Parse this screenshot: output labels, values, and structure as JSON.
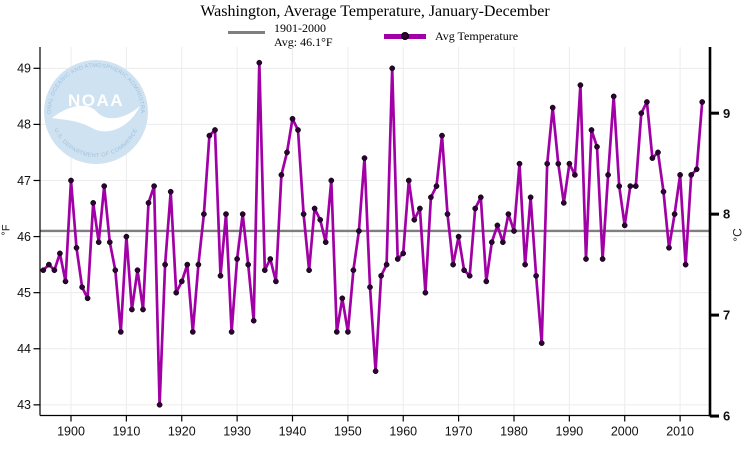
{
  "title": "Washington, Average Temperature, January-December",
  "legend": {
    "baseline": {
      "line1": "1901-2000",
      "line2": "Avg: 46.1°F"
    },
    "series": {
      "label": "Avg Temperature"
    }
  },
  "watermark": {
    "ring_top": "NATIONAL OCEANIC AND ATMOSPHERIC ADMINISTRATION",
    "ring_bottom": "U.S. DEPARTMENT OF COMMERCE",
    "wordmark": "NOAA"
  },
  "colors": {
    "series": "#a100a6",
    "marker": "#2e0033",
    "baseline": "#7f7f7f",
    "grid": "#ececec",
    "axis": "#000000",
    "logo_disc": "#cfe2f2",
    "logo_ring_text": "#9fc2de"
  },
  "chart_data": {
    "type": "line",
    "title": "Washington, Average Temperature, January-December",
    "start_year": 1895,
    "series": [
      {
        "name": "Avg Temperature",
        "values": [
          45.4,
          45.5,
          45.4,
          45.7,
          45.2,
          47.0,
          45.8,
          45.1,
          44.9,
          46.6,
          45.9,
          46.9,
          45.9,
          45.4,
          44.3,
          46.0,
          44.7,
          45.4,
          44.7,
          46.6,
          46.9,
          43.0,
          45.5,
          46.8,
          45.0,
          45.2,
          45.5,
          44.3,
          45.5,
          46.4,
          47.8,
          47.9,
          45.3,
          46.4,
          44.3,
          45.6,
          46.4,
          45.5,
          44.5,
          49.1,
          45.4,
          45.6,
          45.2,
          47.1,
          47.5,
          48.1,
          47.9,
          46.4,
          45.4,
          46.5,
          46.3,
          45.9,
          47.0,
          44.3,
          44.9,
          44.3,
          45.4,
          46.1,
          47.4,
          45.1,
          43.6,
          45.3,
          45.5,
          49.0,
          45.6,
          45.7,
          47.0,
          46.3,
          46.5,
          45.0,
          46.7,
          46.9,
          47.8,
          46.4,
          45.5,
          46.0,
          45.4,
          45.3,
          46.5,
          46.7,
          45.2,
          45.9,
          46.2,
          45.9,
          46.4,
          46.1,
          47.3,
          45.5,
          46.7,
          45.3,
          44.1,
          47.3,
          48.3,
          47.3,
          46.6,
          47.3,
          47.1,
          48.7,
          45.6,
          47.9,
          47.6,
          45.6,
          47.1,
          48.5,
          46.9,
          46.2,
          46.9,
          46.9,
          48.2,
          48.4,
          47.4,
          47.5,
          46.8,
          45.8,
          46.4,
          47.1,
          45.5,
          47.1,
          47.2,
          48.4
        ]
      }
    ],
    "baseline": {
      "label": "1901-2000 Avg",
      "value": 46.1
    },
    "y_axis_left": {
      "label": "°F",
      "ticks": [
        43,
        44,
        45,
        46,
        47,
        48,
        49
      ],
      "min": 42.81,
      "max": 49.38
    },
    "y_axis_right": {
      "label": "°C",
      "ticks": [
        6,
        7,
        8,
        9
      ]
    },
    "x_axis": {
      "ticks": [
        1900,
        1910,
        1920,
        1930,
        1940,
        1950,
        1960,
        1970,
        1980,
        1990,
        2000,
        2010
      ],
      "min": 1894.4,
      "max": 2015.4
    },
    "grid": true,
    "legend_position": "top"
  }
}
